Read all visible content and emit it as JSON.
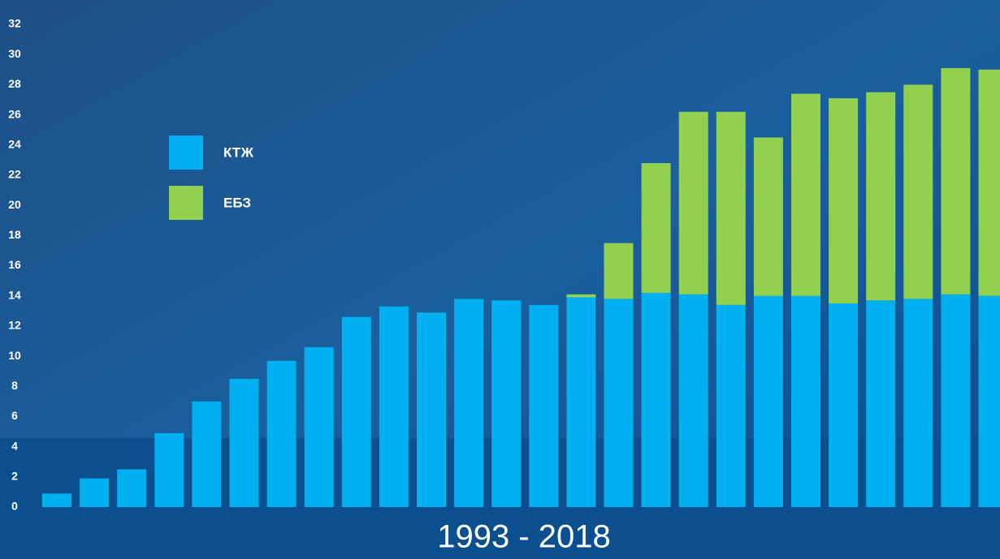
{
  "chart_data": {
    "type": "stacked_bar",
    "x_label": "1993 - 2018",
    "categories": [
      null,
      null,
      null,
      null,
      null,
      null,
      null,
      null,
      null,
      null,
      null,
      null,
      null,
      null,
      null,
      null,
      null,
      null,
      null,
      null,
      null,
      null,
      null,
      null,
      null,
      null
    ],
    "series": [
      {
        "name": "КТЖ",
        "color": "#00b0f0",
        "values": [
          0.9,
          1.9,
          2.5,
          4.9,
          7.0,
          8.5,
          9.7,
          10.6,
          12.6,
          13.3,
          12.9,
          13.8,
          13.7,
          13.4,
          13.9,
          13.8,
          14.2,
          14.1,
          13.4,
          14.0,
          14.0,
          13.5,
          13.7,
          13.8,
          14.1,
          14.0
        ]
      },
      {
        "name": "ЕБЗ",
        "color": "#92d050",
        "values": [
          0,
          0,
          0,
          0,
          0,
          0,
          0,
          0,
          0,
          0,
          0,
          0,
          0,
          0,
          0.2,
          3.7,
          8.6,
          12.1,
          12.8,
          10.5,
          13.4,
          13.6,
          13.8,
          14.2,
          15.0,
          15.0
        ]
      }
    ],
    "ylim": [
      0,
      32
    ],
    "yticks": [
      0,
      2,
      4,
      6,
      8,
      10,
      12,
      14,
      16,
      18,
      20,
      22,
      24,
      26,
      28,
      30,
      32
    ],
    "legend": "upper-left"
  }
}
